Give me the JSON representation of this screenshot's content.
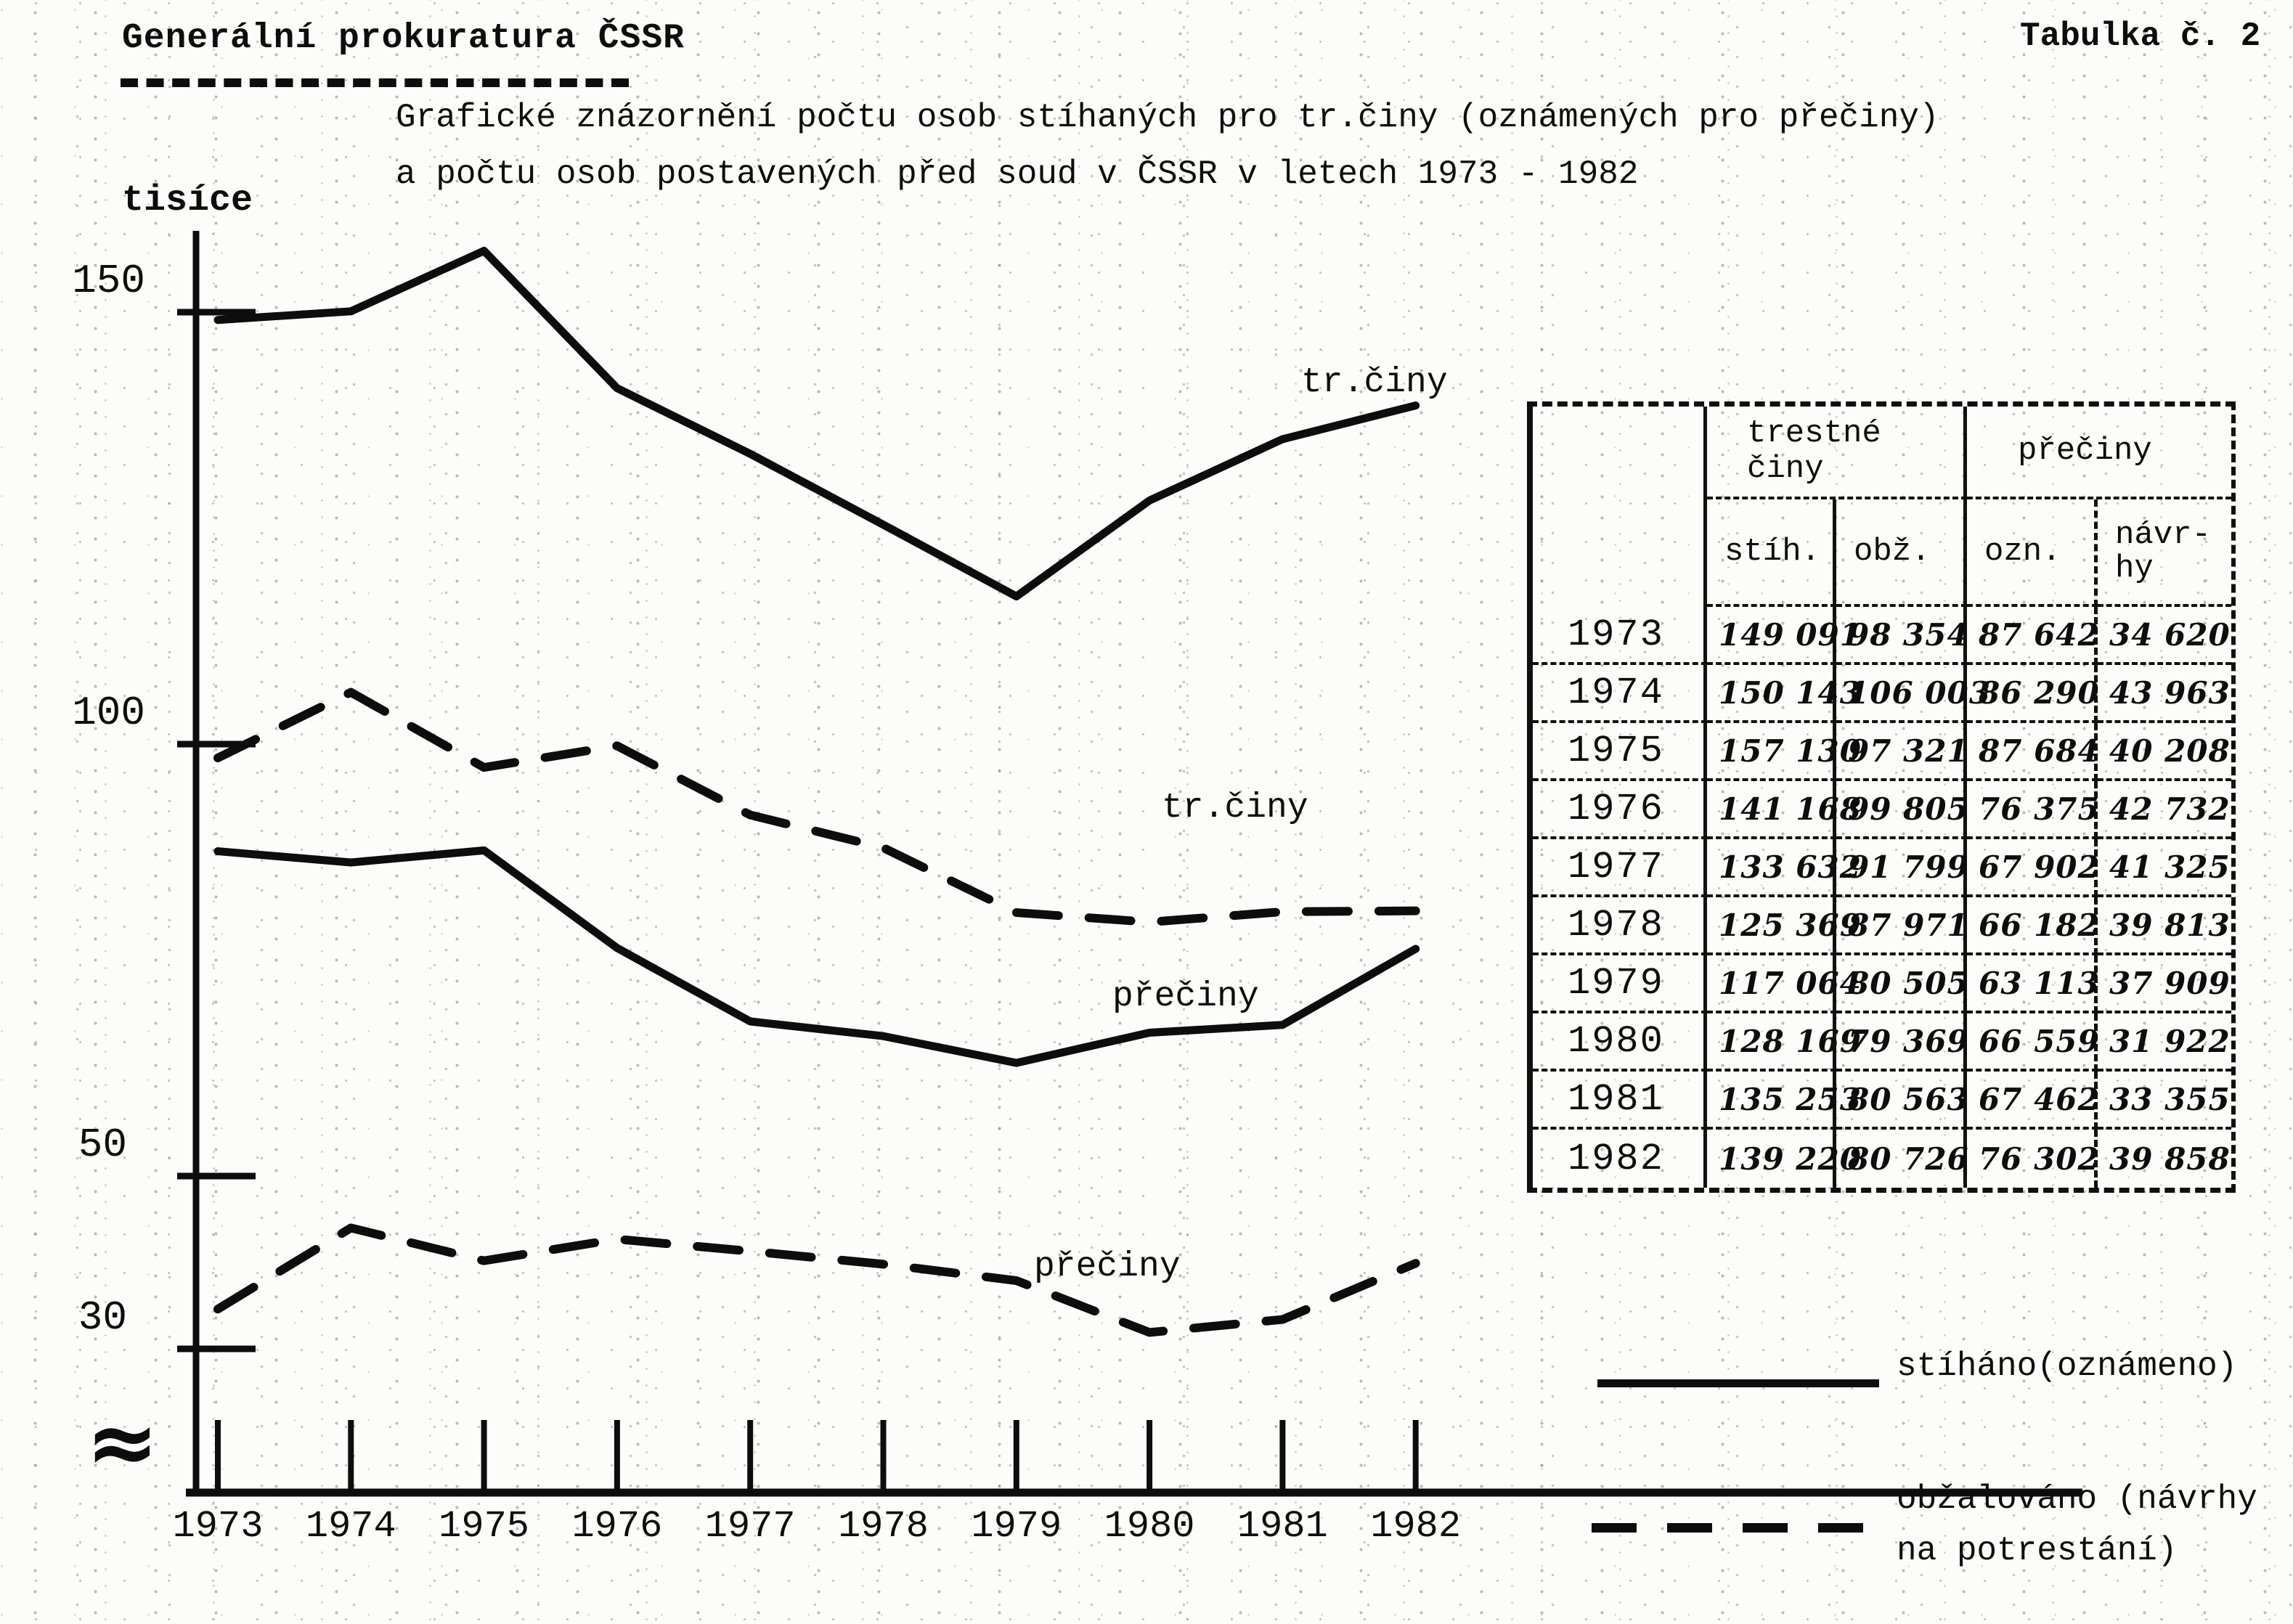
{
  "page": {
    "title": "Generální prokuratura ČSSR",
    "table_caption": "Tabulka č. 2",
    "subtitle_line1": "Grafické znázornění počtu osob stíhaných pro tr.činy (oznámených pro přečiny)",
    "subtitle_line2": "a počtu osob postavených před soud v ČSSR v letech 1973 - 1982"
  },
  "chart_data": {
    "type": "line",
    "title": "Grafické znázornění počtu osob stíhaných pro tr.činy (oznámených pro přečiny) a počtu osob postavených před soud v ČSSR v letech 1973 - 1982",
    "ylabel": "tisíce",
    "xlabel": "",
    "x": [
      "1973",
      "1974",
      "1975",
      "1976",
      "1977",
      "1978",
      "1979",
      "1980",
      "1981",
      "1982"
    ],
    "y_ticks": [
      150,
      100,
      50,
      30
    ],
    "ylim_display": [
      30,
      160
    ],
    "axis_break": true,
    "axis_break_symbol": "≈",
    "grid": false,
    "legend_position": "bottom-right",
    "series": [
      {
        "id": "tr-ciny-stihano",
        "name": "tr.činy — stíháno",
        "style": "solid",
        "values": [
          149.1,
          150.1,
          157.1,
          141.2,
          133.6,
          125.4,
          117.1,
          128.2,
          135.3,
          139.2
        ]
      },
      {
        "id": "tr-ciny-obzalovano",
        "name": "tr.činy — obžalováno",
        "style": "dashed",
        "values": [
          98.4,
          106.0,
          97.3,
          99.8,
          91.8,
          88.0,
          80.5,
          79.4,
          80.6,
          80.7
        ]
      },
      {
        "id": "preciny-oznameno",
        "name": "přečiny — oznámeno",
        "style": "solid",
        "values": [
          87.6,
          86.3,
          87.7,
          76.4,
          67.9,
          66.2,
          63.1,
          66.6,
          67.5,
          76.3
        ]
      },
      {
        "id": "preciny-navrhy",
        "name": "přečiny — návrhy na potrestání",
        "style": "dashed",
        "values": [
          34.6,
          44.0,
          40.2,
          42.7,
          41.3,
          39.8,
          37.9,
          31.9,
          33.4,
          39.9
        ]
      }
    ],
    "curve_labels": [
      {
        "id": "tr-ciny-solid",
        "text": "tr.činy"
      },
      {
        "id": "tr-ciny-dashed",
        "text": "tr.činy"
      },
      {
        "id": "preciny-solid",
        "text": "přečiny"
      },
      {
        "id": "preciny-dashed",
        "text": "přečiny"
      }
    ]
  },
  "table": {
    "caption": "Tabulka č. 2",
    "group_headers": [
      "trestné\nčiny",
      "přečiny"
    ],
    "sub_headers": [
      "stíh.",
      "obž.",
      "ozn.",
      "návr-\nhy"
    ],
    "rows": [
      {
        "year": "1973",
        "stih": "149 091",
        "obz": "98 354",
        "ozn": "87 642",
        "navrhy": "34 620"
      },
      {
        "year": "1974",
        "stih": "150 143",
        "obz": "106 003",
        "ozn": "86 290",
        "navrhy": "43 963"
      },
      {
        "year": "1975",
        "stih": "157 130",
        "obz": "97 321",
        "ozn": "87 684",
        "navrhy": "40 208"
      },
      {
        "year": "1976",
        "stih": "141 168",
        "obz": "99 805",
        "ozn": "76 375",
        "navrhy": "42 732"
      },
      {
        "year": "1977",
        "stih": "133 632",
        "obz": "91 799",
        "ozn": "67 902",
        "navrhy": "41 325"
      },
      {
        "year": "1978",
        "stih": "125 369",
        "obz": "87 971",
        "ozn": "66 182",
        "navrhy": "39 813"
      },
      {
        "year": "1979",
        "stih": "117 064",
        "obz": "80 505",
        "ozn": "63 113",
        "navrhy": "37 909"
      },
      {
        "year": "1980",
        "stih": "128 169",
        "obz": "79 369",
        "ozn": "66 559",
        "navrhy": "31 922"
      },
      {
        "year": "1981",
        "stih": "135 253",
        "obz": "80 563",
        "ozn": "67 462",
        "navrhy": "33 355"
      },
      {
        "year": "1982",
        "stih": "139 220",
        "obz": "80 726",
        "ozn": "76 302",
        "navrhy": "39 858"
      }
    ]
  },
  "legend": {
    "solid_label": "stíháno(oznámeno)",
    "dashed_label": "obžalováno (návrhy\nna potrestání)"
  }
}
